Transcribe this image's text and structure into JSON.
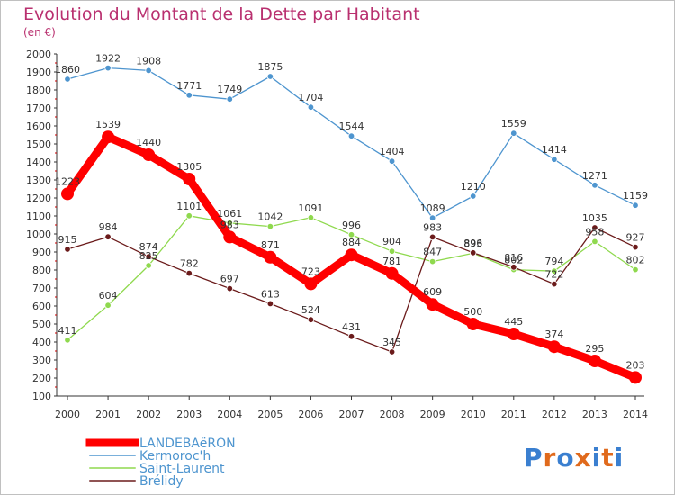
{
  "title": "Evolution du Montant de la Dette par Habitant",
  "subtitle": "(en €)",
  "logo": {
    "text": "Proxiti",
    "letters": [
      "P",
      "r",
      "o",
      "x",
      "i",
      "t",
      "i"
    ],
    "colors": [
      "#3a7fd0",
      "#e06a1c",
      "#3a7fd0",
      "#e06a1c",
      "#3a7fd0",
      "#e06a1c",
      "#3a7fd0"
    ]
  },
  "chart_data": {
    "type": "line",
    "x": [
      "2000",
      "2001",
      "2002",
      "2003",
      "2004",
      "2005",
      "2006",
      "2007",
      "2008",
      "2009",
      "2010",
      "2011",
      "2012",
      "2013",
      "2014"
    ],
    "ylim": [
      100,
      2000
    ],
    "yticks": [
      100,
      200,
      300,
      400,
      500,
      600,
      700,
      800,
      900,
      1000,
      1100,
      1200,
      1300,
      1400,
      1500,
      1600,
      1700,
      1800,
      1900,
      2000
    ],
    "grid": false,
    "legend_position": "bottom-left",
    "series": [
      {
        "name": "LANDEBAëRON",
        "color": "#ff0000",
        "values": [
          1223,
          1539,
          1440,
          1305,
          983,
          871,
          723,
          884,
          781,
          609,
          500,
          445,
          374,
          295,
          203
        ],
        "labels": [
          "1223",
          "1539",
          "1440",
          "1305",
          "983",
          "871",
          "723",
          "884",
          "781",
          "609",
          "500",
          "445",
          "374",
          "295",
          "203"
        ]
      },
      {
        "name": "Kermoroc'h",
        "color": "#4e95cf",
        "values": [
          1860,
          1922,
          1908,
          1771,
          1749,
          1875,
          1704,
          1544,
          1404,
          1089,
          1210,
          1559,
          1414,
          1271,
          1159
        ],
        "labels": [
          "1860",
          "1922",
          "1908",
          "1771",
          "1749",
          "1875",
          "1704",
          "1544",
          "1404",
          "1089",
          "1210",
          "1559",
          "1414",
          "1271",
          "1159"
        ]
      },
      {
        "name": "Saint-Laurent",
        "color": "#8fd94e",
        "values": [
          411,
          604,
          825,
          1101,
          1061,
          1042,
          1091,
          996,
          904,
          847,
          893,
          802,
          794,
          958,
          802
        ],
        "labels": [
          "411",
          "604",
          "825",
          "1101",
          "1061",
          "1042",
          "1091",
          "996",
          "904",
          "847",
          "893",
          "802",
          "794",
          "958",
          "802"
        ]
      },
      {
        "name": "Brélidy",
        "color": "#6b1b1b",
        "values": [
          915,
          984,
          874,
          782,
          697,
          613,
          524,
          431,
          345,
          983,
          896,
          816,
          722,
          1035,
          927
        ],
        "labels": [
          "915",
          "984",
          "874",
          "782",
          "697",
          "613",
          "524",
          "431",
          "345",
          "983",
          "896",
          "816",
          "722",
          "1035",
          "927"
        ]
      }
    ]
  }
}
